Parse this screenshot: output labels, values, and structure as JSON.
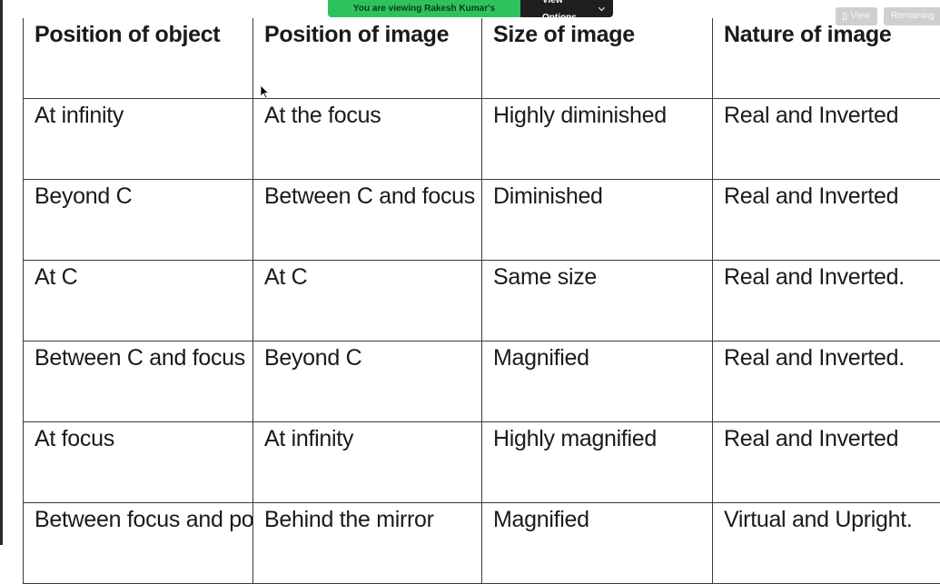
{
  "share_banner": {
    "viewing_text": "You are viewing Rakesh Kumar's screen",
    "view_options_label": "View Options"
  },
  "top_right": {
    "view_label": "View",
    "remaining_label": "Remaining"
  },
  "table": {
    "headers": [
      "Position of object",
      "Position of image",
      "Size of image",
      "Nature of image"
    ],
    "rows": [
      [
        "At infinity",
        "At the focus",
        "Highly diminished",
        "Real and Inverted"
      ],
      [
        "Beyond C",
        "Between C and focus",
        "Diminished",
        "Real and Inverted"
      ],
      [
        "At C",
        "At C",
        "Same size",
        "Real and Inverted."
      ],
      [
        "Between C and focus",
        "Beyond C",
        "Magnified",
        "Real and Inverted."
      ],
      [
        "At focus",
        "At infinity",
        "Highly magnified",
        "Real and Inverted"
      ],
      [
        "Between focus and pole",
        "Behind the mirror",
        "Magnified",
        "Virtual and Upright."
      ]
    ]
  },
  "colors": {
    "banner_green": "#2ec25d",
    "banner_dark": "#1f1f1f",
    "chip_gray": "#cfcfcf"
  },
  "icons": [
    "chevron-down-icon",
    "view-icon",
    "mouse-cursor-icon"
  ]
}
